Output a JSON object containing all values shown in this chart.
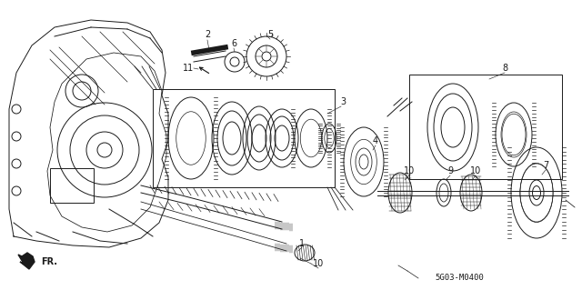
{
  "bg_color": "#ffffff",
  "line_color": "#1a1a1a",
  "fig_width": 6.4,
  "fig_height": 3.19,
  "dpi": 100,
  "code": "5G03-M0400",
  "fr_label": "FR."
}
